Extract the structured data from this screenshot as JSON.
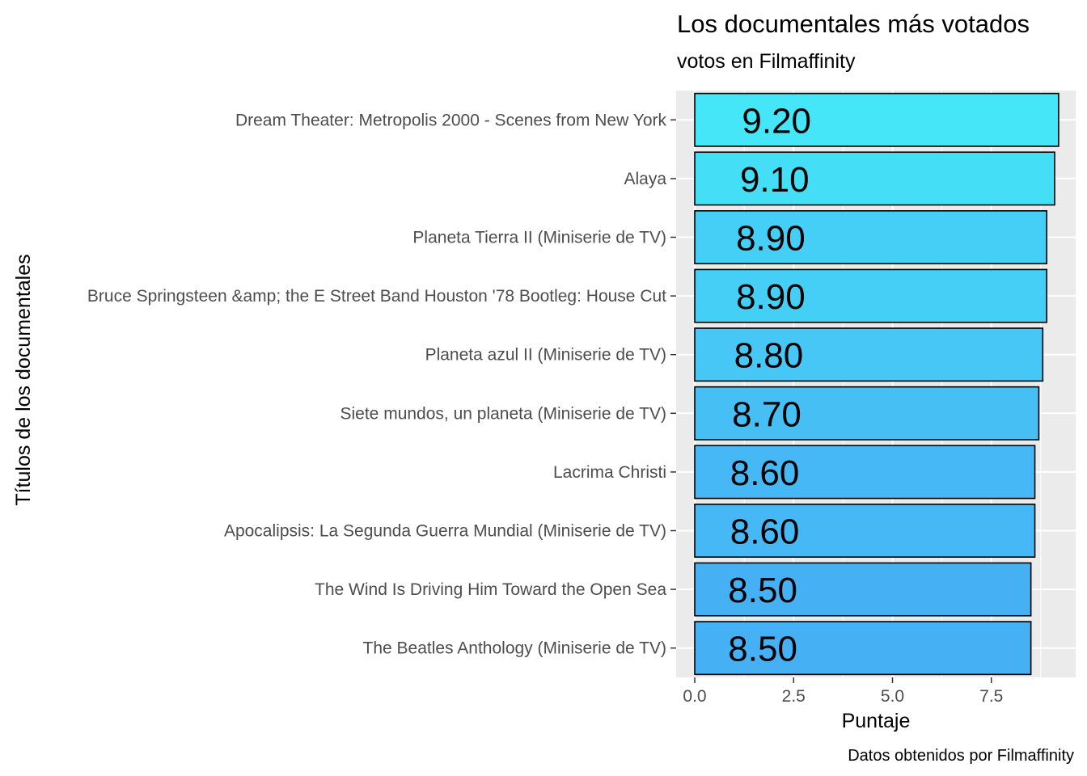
{
  "chart_data": {
    "type": "bar",
    "orientation": "horizontal",
    "title": "Los documentales más votados",
    "subtitle": "votos en Filmaffinity",
    "xlabel": "Puntaje",
    "ylabel": "Títulos de los documentales",
    "caption": "Datos obtenidos por Filmaffinity",
    "xlim": [
      0,
      9.4
    ],
    "xticks": [
      {
        "value": 0,
        "label": "0.0"
      },
      {
        "value": 2.5,
        "label": "2.5"
      },
      {
        "value": 5,
        "label": "5.0"
      },
      {
        "value": 7.5,
        "label": "7.5"
      }
    ],
    "categories": [
      "Dream Theater: Metropolis 2000 - Scenes from New York",
      "Alaya",
      "Planeta Tierra II (Miniserie de TV)",
      "Bruce Springsteen &amp; the E Street Band Houston '78 Bootleg: House Cut",
      "Planeta azul II (Miniserie de TV)",
      "Siete mundos, un planeta (Miniserie de TV)",
      "Lacrima Christi",
      "Apocalipsis: La Segunda Guerra Mundial (Miniserie de TV)",
      "The Wind Is Driving Him Toward the Open Sea",
      "The Beatles Anthology (Miniserie de TV)"
    ],
    "values": [
      9.2,
      9.1,
      8.9,
      8.9,
      8.8,
      8.7,
      8.6,
      8.6,
      8.5,
      8.5
    ],
    "value_labels": [
      "9.20",
      "9.10",
      "8.90",
      "8.90",
      "8.80",
      "8.70",
      "8.60",
      "8.60",
      "8.50",
      "8.50"
    ],
    "fill_gradient": {
      "low": "#46b0f4",
      "high": "#45e6f8"
    },
    "bar_outline": "#000000",
    "panel_background": "#ebebeb",
    "grid": true,
    "legend": "none"
  }
}
